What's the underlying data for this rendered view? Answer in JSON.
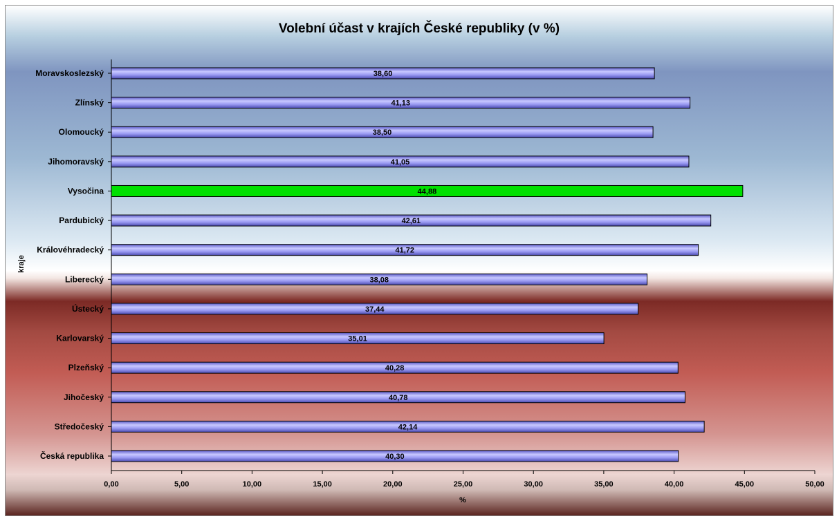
{
  "chart_data": {
    "type": "bar",
    "orientation": "horizontal",
    "title": "Volební účast v krajích České republiky (v %)",
    "xlabel": "%",
    "ylabel": "kraje",
    "xlim": [
      0,
      50
    ],
    "x_ticks": [
      0,
      5,
      10,
      15,
      20,
      25,
      30,
      35,
      40,
      45,
      50
    ],
    "x_tick_labels": [
      "0,00",
      "5,00",
      "10,00",
      "15,00",
      "20,00",
      "25,00",
      "30,00",
      "35,00",
      "40,00",
      "45,00",
      "50,00"
    ],
    "grid": false,
    "legend": "none",
    "categories": [
      "Moravskoslezský",
      "Zlínský",
      "Olomoucký",
      "Jihomoravský",
      "Vysočina",
      "Pardubický",
      "Královéhradecký",
      "Liberecký",
      "Ústecký",
      "Karlovarský",
      "Plzeňský",
      "Jihočeský",
      "Středočeský",
      "Česká republika"
    ],
    "values": [
      38.6,
      41.13,
      38.5,
      41.05,
      44.88,
      42.61,
      41.72,
      38.08,
      37.44,
      35.01,
      40.28,
      40.78,
      42.14,
      40.3
    ],
    "value_labels": [
      "38,60",
      "41,13",
      "38,50",
      "41,05",
      "44,88",
      "42,61",
      "41,72",
      "38,08",
      "37,44",
      "35,01",
      "40,28",
      "40,78",
      "42,14",
      "40,30"
    ],
    "highlight_category": "Vysočina",
    "colors": {
      "bar": "#8f8ff0",
      "bar_highlight": "#00f000",
      "bar_outline": "#000000"
    }
  }
}
